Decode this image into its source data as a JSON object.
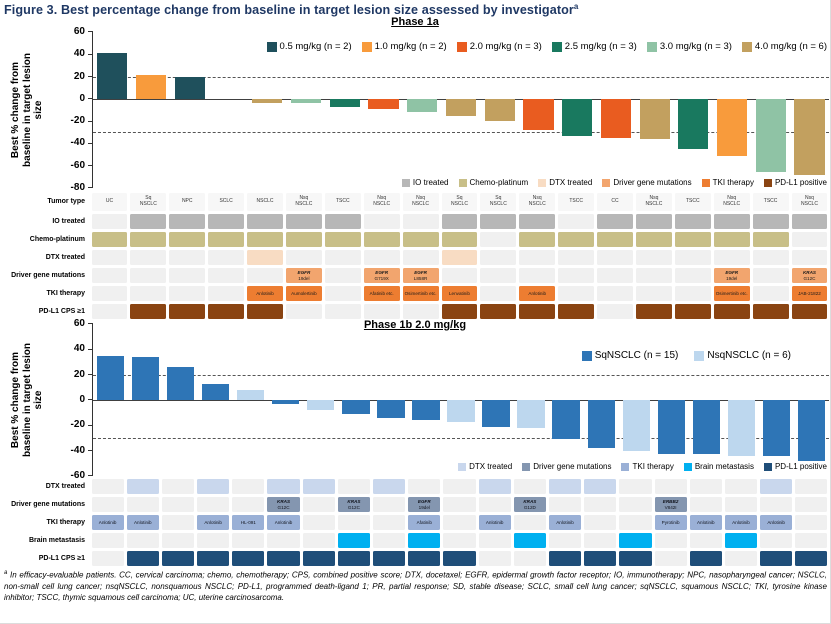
{
  "figure": {
    "title": "Figure 3. Best percentage change from baseline in target lesion size assessed by investigator",
    "title_superscript": "a",
    "accent_color": "#1f3864"
  },
  "chart_data": [
    {
      "type": "bar",
      "title": "Phase 1a",
      "ylabel": "Best % change from baseline in target lesion size",
      "ylabel_lines": [
        "Best % change from",
        "baseline in target lesion",
        "size"
      ],
      "ylim": [
        -80,
        60
      ],
      "ytick_step": 20,
      "dashed_refs": [
        20,
        -30
      ],
      "grid": false,
      "legend_position": "top-right-inside",
      "color_key": "dose",
      "colors": {
        "0.5 mg/kg": "#1f505c",
        "1.0 mg/kg": "#f89b3c",
        "2.0 mg/kg": "#e95c20",
        "2.5 mg/kg": "#19795f",
        "3.0 mg/kg": "#8fc3a5",
        "4.0 mg/kg": "#c2a05f"
      },
      "legend": [
        {
          "label": "0.5 mg/kg (n = 2)",
          "color": "#1f505c"
        },
        {
          "label": "1.0 mg/kg (n = 2)",
          "color": "#f89b3c"
        },
        {
          "label": "2.0 mg/kg (n = 3)",
          "color": "#e95c20"
        },
        {
          "label": "2.5 mg/kg (n = 3)",
          "color": "#19795f"
        },
        {
          "label": "3.0 mg/kg (n = 3)",
          "color": "#8fc3a5"
        },
        {
          "label": "4.0 mg/kg (n = 6)",
          "color": "#c2a05f"
        }
      ],
      "bars": [
        {
          "tumor": "UC",
          "dose": "0.5 mg/kg",
          "value": 41
        },
        {
          "tumor": "Sq NSCLC",
          "dose": "1.0 mg/kg",
          "value": 21
        },
        {
          "tumor": "NPC",
          "dose": "0.5 mg/kg",
          "value": 20
        },
        {
          "tumor": "SCLC",
          "dose": "4.0 mg/kg",
          "value": 0
        },
        {
          "tumor": "NSCLC",
          "dose": "4.0 mg/kg",
          "value": -4
        },
        {
          "tumor": "Nsq NSCLC",
          "dose": "3.0 mg/kg",
          "value": -4
        },
        {
          "tumor": "TSCC",
          "dose": "2.5 mg/kg",
          "value": -7
        },
        {
          "tumor": "Nsq NSCLC",
          "dose": "2.0 mg/kg",
          "value": -9
        },
        {
          "tumor": "Nsq NSCLC",
          "dose": "3.0 mg/kg",
          "value": -12
        },
        {
          "tumor": "Sq NSCLC",
          "dose": "4.0 mg/kg",
          "value": -15
        },
        {
          "tumor": "Sq NSCLC",
          "dose": "4.0 mg/kg",
          "value": -20
        },
        {
          "tumor": "Nsq NSCLC",
          "dose": "2.0 mg/kg",
          "value": -28
        },
        {
          "tumor": "TSCC",
          "dose": "2.5 mg/kg",
          "value": -33
        },
        {
          "tumor": "CC",
          "dose": "2.0 mg/kg",
          "value": -35
        },
        {
          "tumor": "Nsq NSCLC",
          "dose": "4.0 mg/kg",
          "value": -36
        },
        {
          "tumor": "TSCC",
          "dose": "2.5 mg/kg",
          "value": -45
        },
        {
          "tumor": "Nsq NSCLC",
          "dose": "1.0 mg/kg",
          "value": -51
        },
        {
          "tumor": "TSCC",
          "dose": "3.0 mg/kg",
          "value": -66
        },
        {
          "tumor": "Nsq NSCLC",
          "dose": "4.0 mg/kg",
          "value": -68
        }
      ]
    },
    {
      "type": "bar",
      "title": "Phase 1b 2.0 mg/kg",
      "ylabel": "Best % change from baseline in target lesion size",
      "ylabel_lines": [
        "Best % change from",
        "baseline in target lesion",
        "size"
      ],
      "ylim": [
        -60,
        60
      ],
      "ytick_step": 20,
      "dashed_refs": [
        20,
        -30
      ],
      "grid": false,
      "legend_position": "top-right-inside",
      "color_key": "group",
      "colors": {
        "SqNSCLC": "#2e75b6",
        "NsqNSCLC": "#bdd7ee"
      },
      "legend": [
        {
          "label": "SqNSCLC (n = 15)",
          "color": "#2e75b6"
        },
        {
          "label": "NsqNSCLC (n = 6)",
          "color": "#bdd7ee"
        }
      ],
      "bars": [
        {
          "group": "SqNSCLC",
          "value": 35
        },
        {
          "group": "SqNSCLC",
          "value": 34
        },
        {
          "group": "SqNSCLC",
          "value": 26
        },
        {
          "group": "SqNSCLC",
          "value": 13
        },
        {
          "group": "NsqNSCLC",
          "value": 8
        },
        {
          "group": "SqNSCLC",
          "value": -3
        },
        {
          "group": "NsqNSCLC",
          "value": -8
        },
        {
          "group": "SqNSCLC",
          "value": -11
        },
        {
          "group": "SqNSCLC",
          "value": -14
        },
        {
          "group": "SqNSCLC",
          "value": -16
        },
        {
          "group": "NsqNSCLC",
          "value": -17
        },
        {
          "group": "SqNSCLC",
          "value": -21
        },
        {
          "group": "NsqNSCLC",
          "value": -22
        },
        {
          "group": "SqNSCLC",
          "value": -31
        },
        {
          "group": "SqNSCLC",
          "value": -38
        },
        {
          "group": "NsqNSCLC",
          "value": -40
        },
        {
          "group": "SqNSCLC",
          "value": -43
        },
        {
          "group": "SqNSCLC",
          "value": -43
        },
        {
          "group": "NsqNSCLC",
          "value": -44
        },
        {
          "group": "SqNSCLC",
          "value": -44
        },
        {
          "group": "SqNSCLC",
          "value": -48
        }
      ]
    }
  ],
  "phase1a_table": {
    "n": 19,
    "rows": [
      {
        "label": "Tumor type",
        "type": "labels",
        "labels": [
          "UC",
          "Sq NSCLC",
          "NPC",
          "SCLC",
          "NSCLC",
          "Nsq NSCLC",
          "TSCC",
          "Nsq NSCLC",
          "Nsq NSCLC",
          "Sq NSCLC",
          "Sq NSCLC",
          "Nsq NSCLC",
          "TSCC",
          "CC",
          "Nsq NSCLC",
          "TSCC",
          "Nsq NSCLC",
          "TSCC",
          "Nsq NSCLC"
        ]
      },
      {
        "label": "IO treated",
        "color": "#b7b7b7",
        "on": [
          2,
          3,
          4,
          5,
          6,
          7,
          10,
          11,
          12,
          14,
          15,
          16,
          17,
          18,
          19
        ]
      },
      {
        "label": "Chemo-platinum",
        "color": "#c8bf88",
        "on": [
          1,
          2,
          3,
          4,
          5,
          6,
          7,
          8,
          9,
          10,
          12,
          13,
          14,
          15,
          16,
          17,
          18
        ]
      },
      {
        "label": "DTX treated",
        "color": "#f8dcc3",
        "on": [
          5,
          10
        ]
      },
      {
        "label": "Driver gene mutations",
        "color": "#f2a56e",
        "text_color": "#1a1a1a",
        "cells": {
          "6": "EGFR|19del",
          "8": "EGFR|G719X",
          "9": "EGFR|L858R",
          "17": "EGFR|19del",
          "19": "KRAS|G12C"
        }
      },
      {
        "label": "TKI therapy",
        "color": "#ed7d31",
        "text_color": "#1a1a1a",
        "cells": {
          "5": "Anlotinib",
          "6": "Aumolertinib",
          "8": "Afatinib etc.",
          "9": "Osimertinib etc.",
          "10": "Lenvatinib",
          "12": "Anlotinib",
          "17": "Osimertinib etc.",
          "19": "JAB-21822"
        }
      },
      {
        "label": "PD-L1 CPS ≥1",
        "color": "#8a4412",
        "on": [
          2,
          3,
          4,
          5,
          10,
          11,
          12,
          13,
          15,
          16,
          17,
          18,
          19
        ]
      }
    ]
  },
  "phase1b_table": {
    "n": 21,
    "rows": [
      {
        "label": "DTX treated",
        "color": "#c9d7ed",
        "on": [
          2,
          4,
          6,
          7,
          9,
          12,
          14,
          15,
          20
        ]
      },
      {
        "label": "Driver gene mutations",
        "color": "#8496b0",
        "text_color": "#10131c",
        "cells": {
          "6": "KRAS|G12C",
          "8": "KRAS|G12C",
          "10": "EGFR|19del",
          "13": "KRAS|G12D",
          "17": "ERBB2|V842I"
        }
      },
      {
        "label": "TKI therapy",
        "color": "#9ab0d6",
        "text_color": "#10131c",
        "cells": {
          "1": "Anlotinib",
          "2": "Anlotinib",
          "4": "Anlotinib",
          "5": "HL-091",
          "6": "Anlotinib",
          "10": "Afatinib",
          "12": "Anlotinib",
          "14": "Anlotinib",
          "17": "Pyrotinib",
          "18": "Anlotinib",
          "19": "Anlotinib",
          "20": "Anlotinib"
        }
      },
      {
        "label": "Brain metastasis",
        "color": "#00b0f0",
        "on": [
          8,
          10,
          13,
          16,
          19
        ]
      },
      {
        "label": "PD-L1 CPS ≥1",
        "color": "#1f4e79",
        "on": [
          2,
          3,
          4,
          5,
          6,
          7,
          8,
          9,
          10,
          11,
          14,
          15,
          16,
          18,
          20,
          21
        ]
      }
    ]
  },
  "phase1a_bottom_legend": [
    {
      "label": "IO treated",
      "color": "#b7b7b7"
    },
    {
      "label": "Chemo-platinum",
      "color": "#c8bf88"
    },
    {
      "label": "DTX treated",
      "color": "#f8dcc3"
    },
    {
      "label": "Driver gene mutations",
      "color": "#f2a56e"
    },
    {
      "label": "TKI therapy",
      "color": "#ed7d31"
    },
    {
      "label": "PD-L1 positive",
      "color": "#8a4412"
    }
  ],
  "phase1b_bottom_legend": [
    {
      "label": "DTX treated",
      "color": "#c9d7ed"
    },
    {
      "label": "Driver gene mutations",
      "color": "#8496b0"
    },
    {
      "label": "TKI therapy",
      "color": "#9ab0d6"
    },
    {
      "label": "Brain metastasis",
      "color": "#00b0f0"
    },
    {
      "label": "PD-L1 positive",
      "color": "#1f4e79"
    }
  ],
  "footnote": {
    "superscript": "a",
    "text": " In efficacy-evaluable patients. CC, cervical carcinoma; chemo, chemotherapy; CPS, combined positive score; DTX, docetaxel; EGFR, epidermal growth factor receptor; IO, immunotherapy; NPC, nasopharyngeal cancer; NSCLC, non-small cell lung cancer; nsqNSCLC, nonsquamous NSCLC; PD-L1, programmed death-ligand 1; PR, partial response; SD, stable disease; SCLC, small cell lung cancer; sqNSCLC, squamous NSCLC; TKI, tyrosine kinase inhibitor; TSCC, thymic squamous cell carcinoma; UC, uterine carcinosarcoma."
  }
}
